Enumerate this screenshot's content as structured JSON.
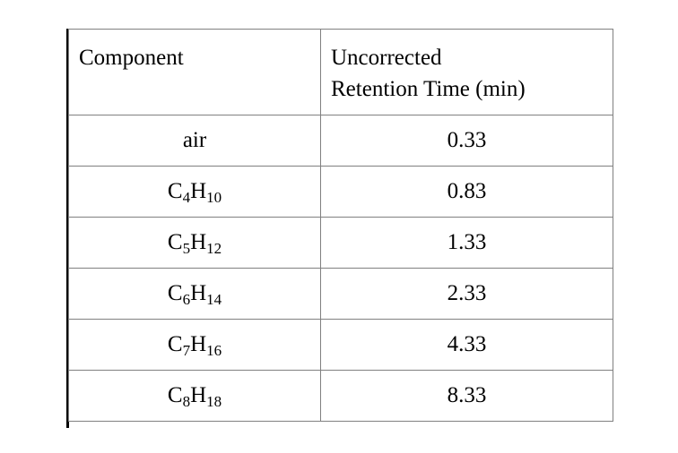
{
  "page": {
    "background": "#ffffff"
  },
  "table": {
    "grid_color": "#808080",
    "left_accent_color": "#000000",
    "header": {
      "component": "Component",
      "retention_line1": "Uncorrected",
      "retention_line2": "Retention Time (min)"
    },
    "rows": [
      {
        "component": {
          "c1": "air",
          "s1": "",
          "c2": "",
          "s2": ""
        },
        "time": "0.33"
      },
      {
        "component": {
          "c1": "C",
          "s1": "4",
          "c2": "H",
          "s2": "10"
        },
        "time": "0.83"
      },
      {
        "component": {
          "c1": "C",
          "s1": "5",
          "c2": "H",
          "s2": "12"
        },
        "time": "1.33"
      },
      {
        "component": {
          "c1": "C",
          "s1": "6",
          "c2": "H",
          "s2": "14"
        },
        "time": "2.33"
      },
      {
        "component": {
          "c1": "C",
          "s1": "7",
          "c2": "H",
          "s2": "16"
        },
        "time": "4.33"
      },
      {
        "component": {
          "c1": "C",
          "s1": "8",
          "c2": "H",
          "s2": "18"
        },
        "time": "8.33"
      }
    ]
  }
}
